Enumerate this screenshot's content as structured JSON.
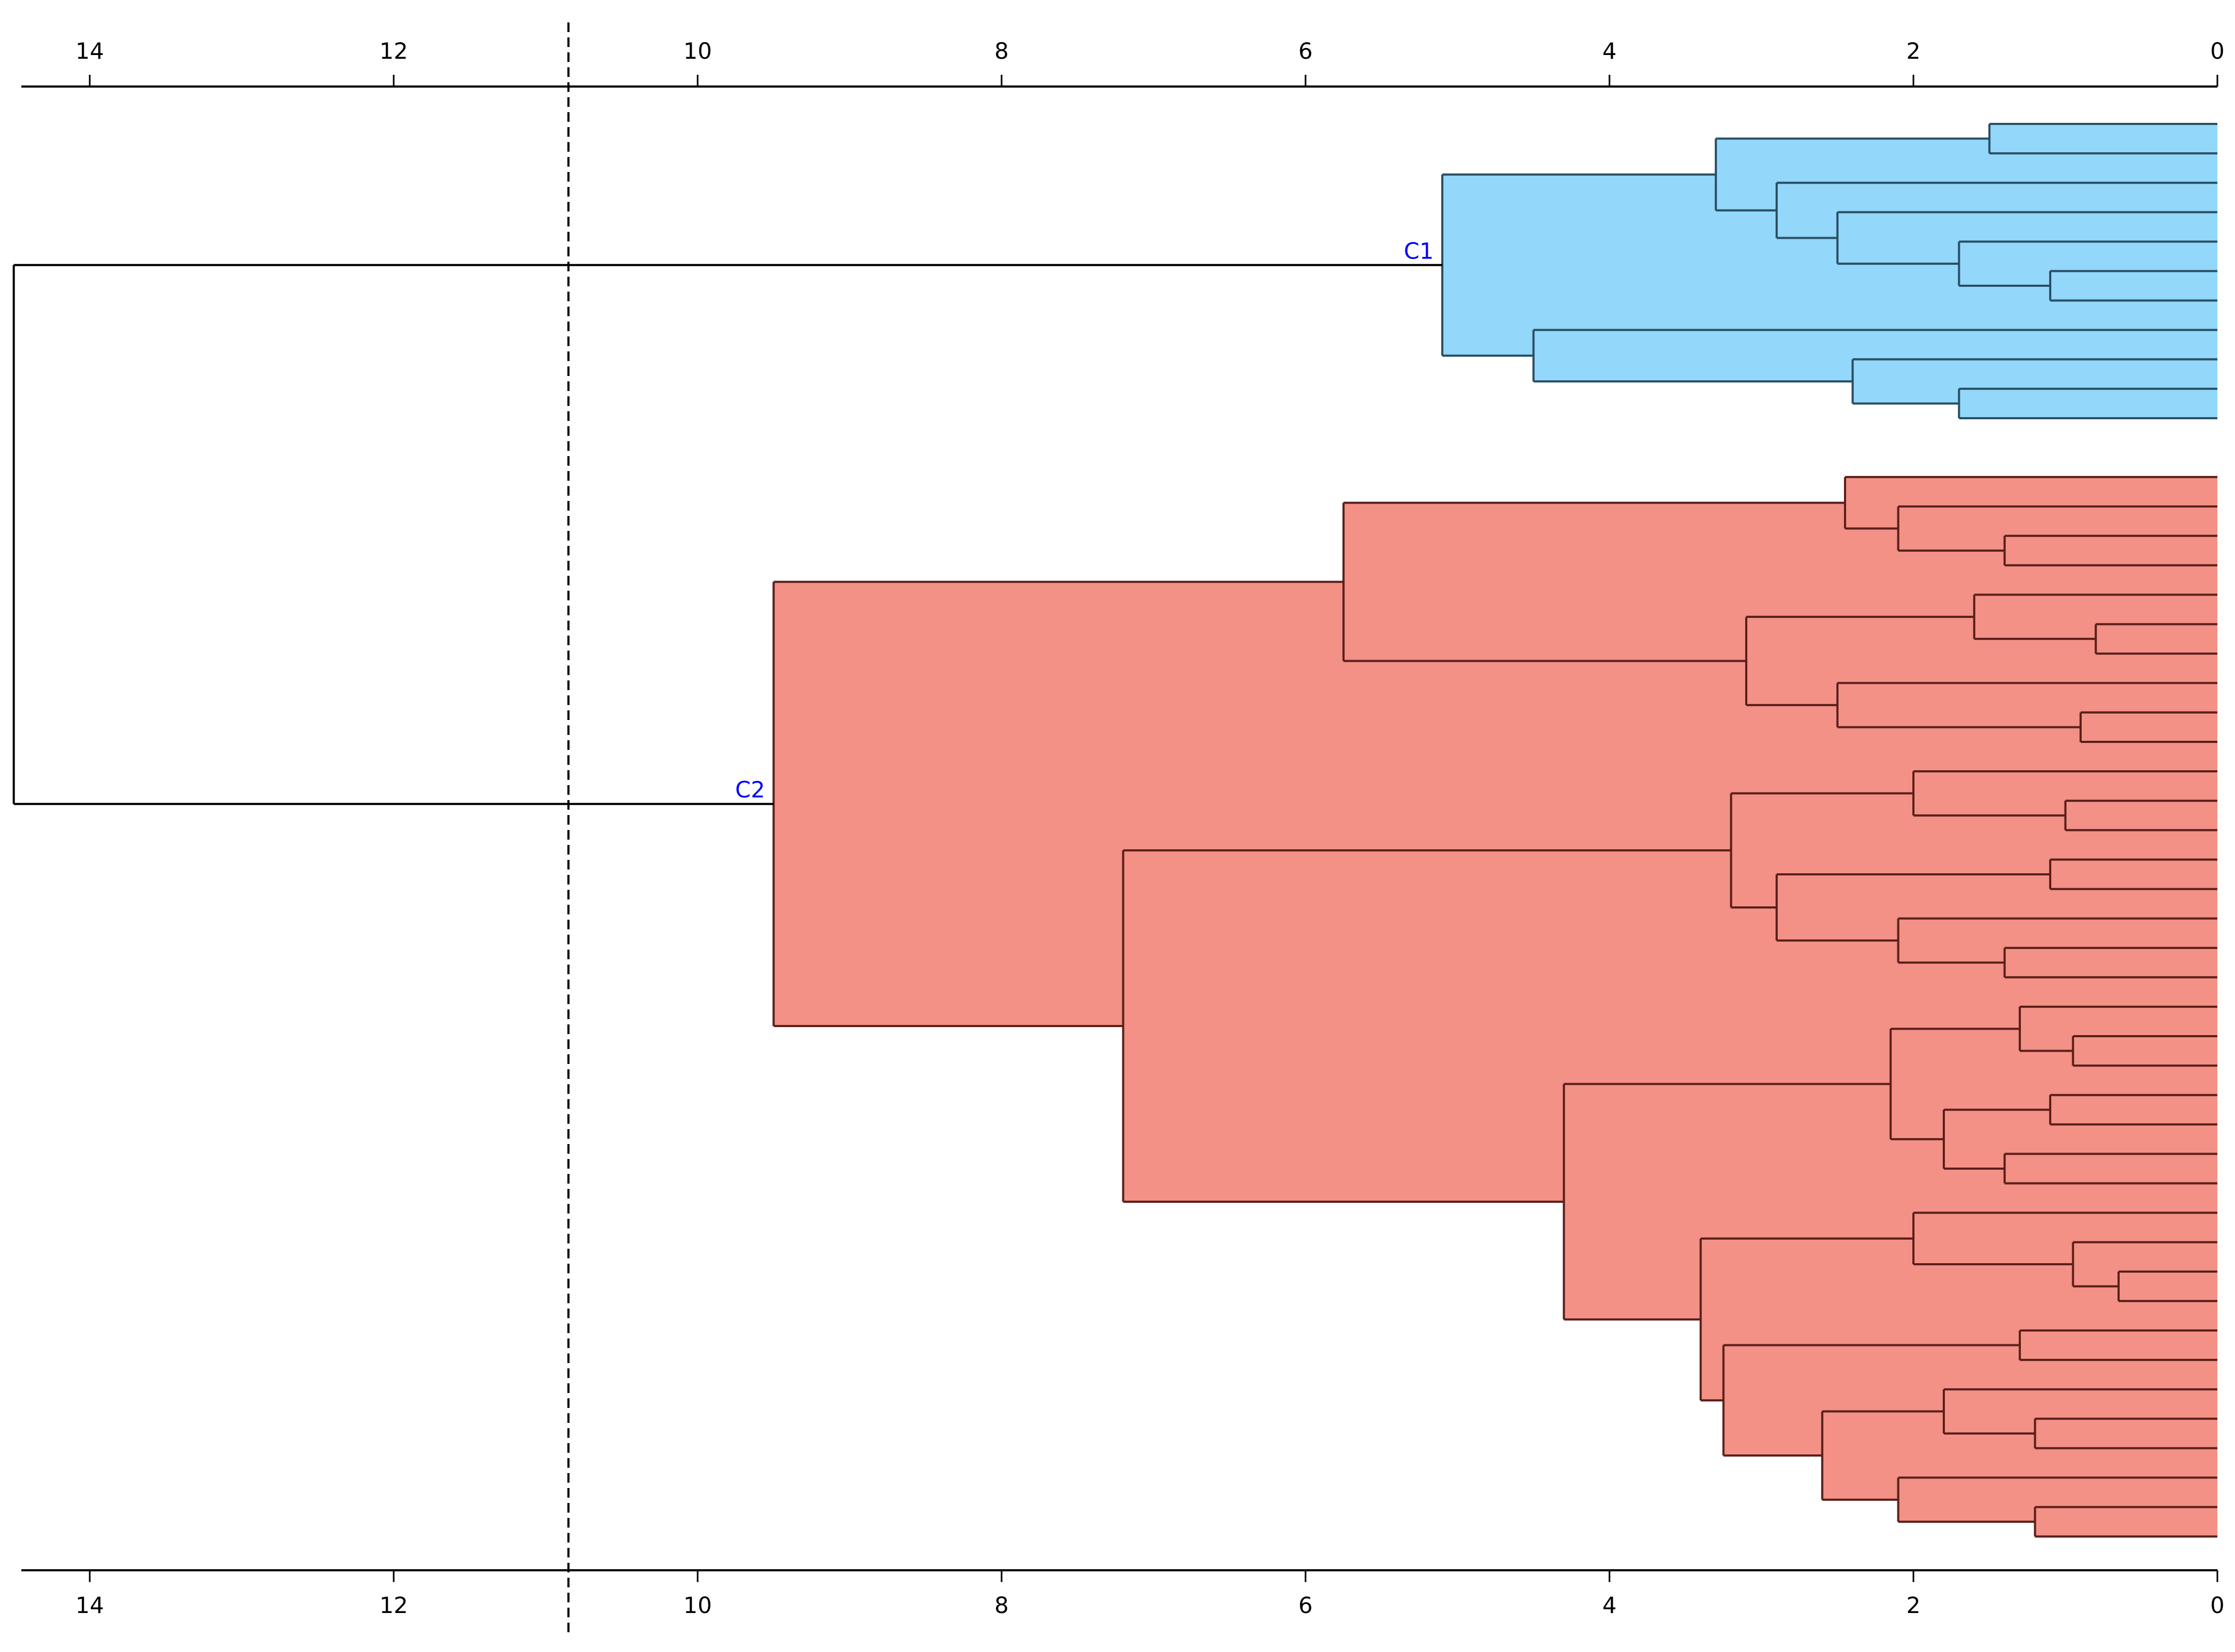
{
  "chart_data": {
    "type": "dendrogram",
    "orientation": "horizontal",
    "axis": {
      "min": 0,
      "max": 14.5,
      "reversed": true,
      "ticks": [
        14,
        12,
        10,
        8,
        6,
        4,
        2,
        0
      ],
      "tick_labels": [
        "14",
        "12",
        "10",
        "8",
        "6",
        "4",
        "2",
        "0"
      ],
      "positions": [
        "top",
        "bottom"
      ]
    },
    "cut_height": 10.85,
    "root_height": 14.5,
    "leaf_count": 48,
    "clusters": [
      {
        "name": "C1",
        "label": "C1",
        "color": "#93d7fa",
        "border_color": "#2a4f63",
        "height": 5.1,
        "tree": [
          5.1,
          [
            3.3,
            [
              1.5,
              0,
              1
            ],
            [
              2.9,
              2,
              [
                2.5,
                3,
                [
                  1.7,
                  4,
                  [
                    1.1,
                    5,
                    6
                  ]
                ]
              ]
            ]
          ],
          [
            4.5,
            7,
            [
              2.4,
              8,
              [
                1.7,
                9,
                10
              ]
            ]
          ]
        ]
      },
      {
        "name": "C2",
        "label": "C2",
        "color": "#f39186",
        "border_color": "#5a1f1a",
        "height": 9.5,
        "tree": [
          9.5,
          [
            5.75,
            [
              2.45,
              11,
              [
                2.1,
                12,
                [
                  1.4,
                  13,
                  14
                ]
              ]
            ],
            [
              3.1,
              [
                1.6,
                15,
                [
                  0.8,
                  16,
                  17
                ]
              ],
              [
                2.5,
                18,
                [
                  0.9,
                  19,
                  20
                ]
              ]
            ]
          ],
          [
            7.2,
            [
              3.2,
              [
                2.0,
                21,
                [
                  1.0,
                  22,
                  23
                ]
              ],
              [
                2.9,
                [
                  1.1,
                  24,
                  25
                ],
                [
                  2.1,
                  26,
                  [
                    1.4,
                    27,
                    28
                  ]
                ]
              ]
            ],
            [
              4.3,
              [
                2.15,
                [
                  1.3,
                  29,
                  [
                    0.95,
                    30,
                    31
                  ]
                ],
                [
                  1.8,
                  [
                    1.1,
                    32,
                    33
                  ],
                  [
                    1.4,
                    34,
                    35
                  ]
                ]
              ],
              [
                3.4,
                [
                  2.0,
                  36,
                  [
                    0.95,
                    37,
                    [
                      0.65,
                      38,
                      39
                    ]
                  ]
                ],
                [
                  3.25,
                  [
                    1.3,
                    40,
                    41
                  ],
                  [
                    2.6,
                    [
                      1.8,
                      42,
                      [
                        1.2,
                        43,
                        44
                      ]
                    ],
                    [
                      2.1,
                      45,
                      [
                        1.2,
                        46,
                        47
                      ]
                    ]
                  ]
                ]
              ]
            ]
          ]
        ]
      }
    ],
    "root_line_color": "#000000",
    "cut_line_style": "dashed",
    "label_color": "#0000ff"
  }
}
